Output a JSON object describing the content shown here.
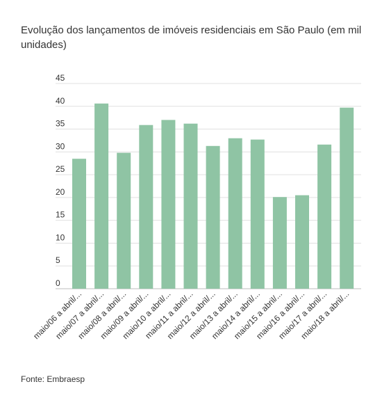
{
  "chart_data": {
    "type": "bar",
    "title": "Evolução dos lançamentos de imóveis residenciais em São Paulo (em mil unidades)",
    "source": "Fonte: Embraesp",
    "categories": [
      "maio/06 a abril/...",
      "maio/07 a abril/...",
      "maio/08 a abril/...",
      "maio/09 a abril/...",
      "maio/10 a abril/...",
      "maio/11 a abril/...",
      "maio/12 a abril/...",
      "maio/13 a abril/...",
      "maio/14 a abril/...",
      "maio/15 a abril/...",
      "maio/16 a abril/...",
      "maio/17 a abril/...",
      "maio/18 a abril/..."
    ],
    "values": [
      28.5,
      40.6,
      29.8,
      35.9,
      37.0,
      36.2,
      31.3,
      33.0,
      32.7,
      20.1,
      20.5,
      31.6,
      39.7
    ],
    "ylim": [
      0,
      45
    ],
    "yticks": [
      0,
      5,
      10,
      15,
      20,
      25,
      30,
      35,
      40,
      45
    ],
    "grid": true,
    "bar_color": "#8fc4a4",
    "grid_color": "#e0e0e0"
  }
}
